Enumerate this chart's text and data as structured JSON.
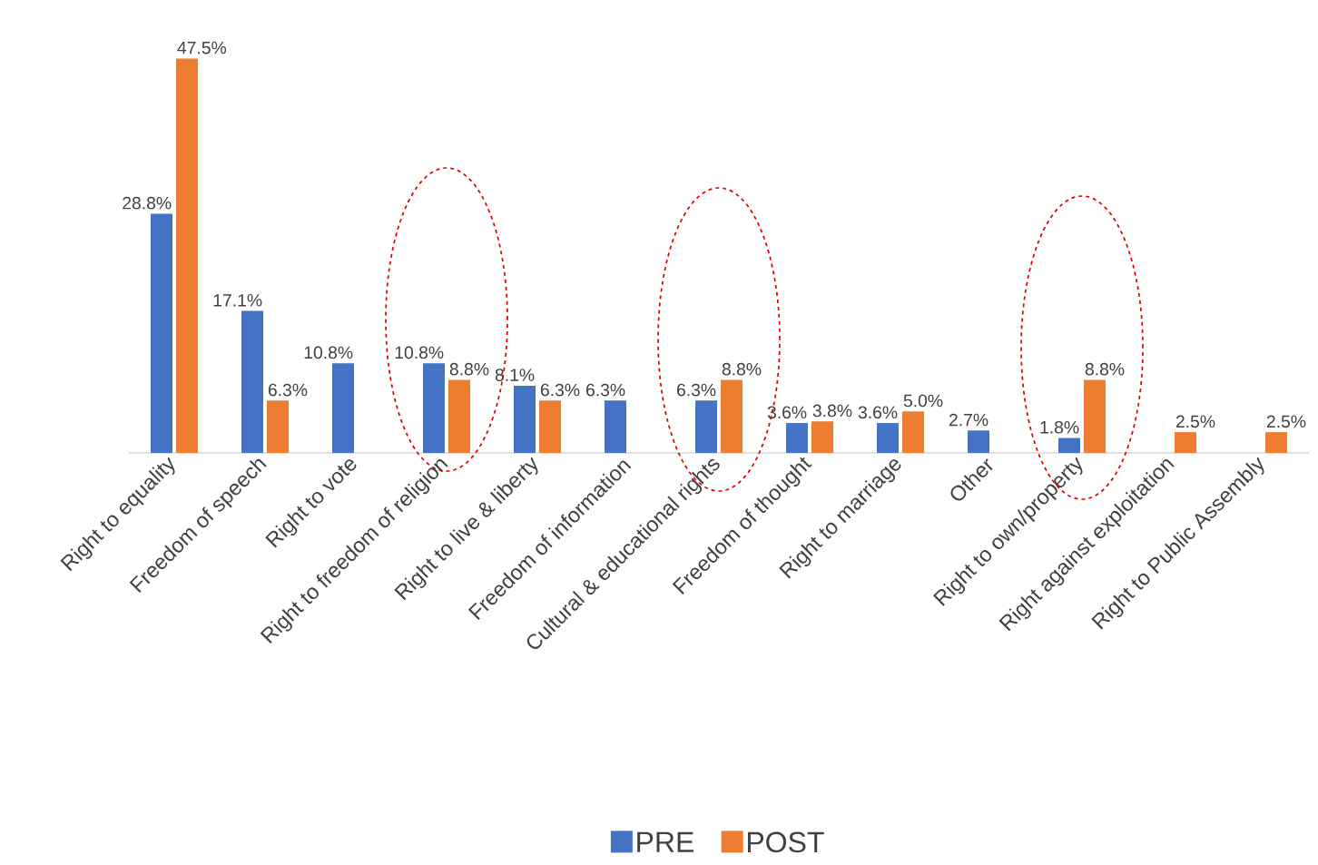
{
  "chart_data": {
    "type": "bar",
    "categories": [
      "Right to equality",
      "Freedom of speech",
      "Right to vote",
      "Right to freedom of religion",
      "Right to live & liberty",
      "Freedom of information",
      "Cultural & educational rights",
      "Freedom of thought",
      "Right to marriage",
      "Other",
      "Right to own/property",
      "Right against exploitation",
      "Right to Public Assembly"
    ],
    "series": [
      {
        "name": "PRE",
        "color": "#4472c4",
        "values": [
          28.8,
          17.1,
          10.8,
          10.8,
          8.1,
          6.3,
          6.3,
          3.6,
          3.6,
          2.7,
          1.8,
          null,
          null
        ],
        "value_labels": [
          "28.8%",
          "17.1%",
          "10.8%",
          "10.8%",
          "8.1%",
          "6.3%",
          "6.3%",
          "3.6%",
          "3.6%",
          "2.7%",
          "1.8%",
          null,
          null
        ]
      },
      {
        "name": "POST",
        "color": "#ed7d31",
        "values": [
          47.5,
          6.3,
          null,
          8.8,
          6.3,
          null,
          8.8,
          3.8,
          5.0,
          null,
          8.8,
          2.5,
          2.5
        ],
        "value_labels": [
          "47.5%",
          "6.3%",
          null,
          "8.8%",
          "6.3%",
          null,
          "8.8%",
          "3.8%",
          "5.0%",
          null,
          "8.8%",
          "2.5%",
          "2.5%"
        ]
      }
    ],
    "legend": "bottom"
  }
}
